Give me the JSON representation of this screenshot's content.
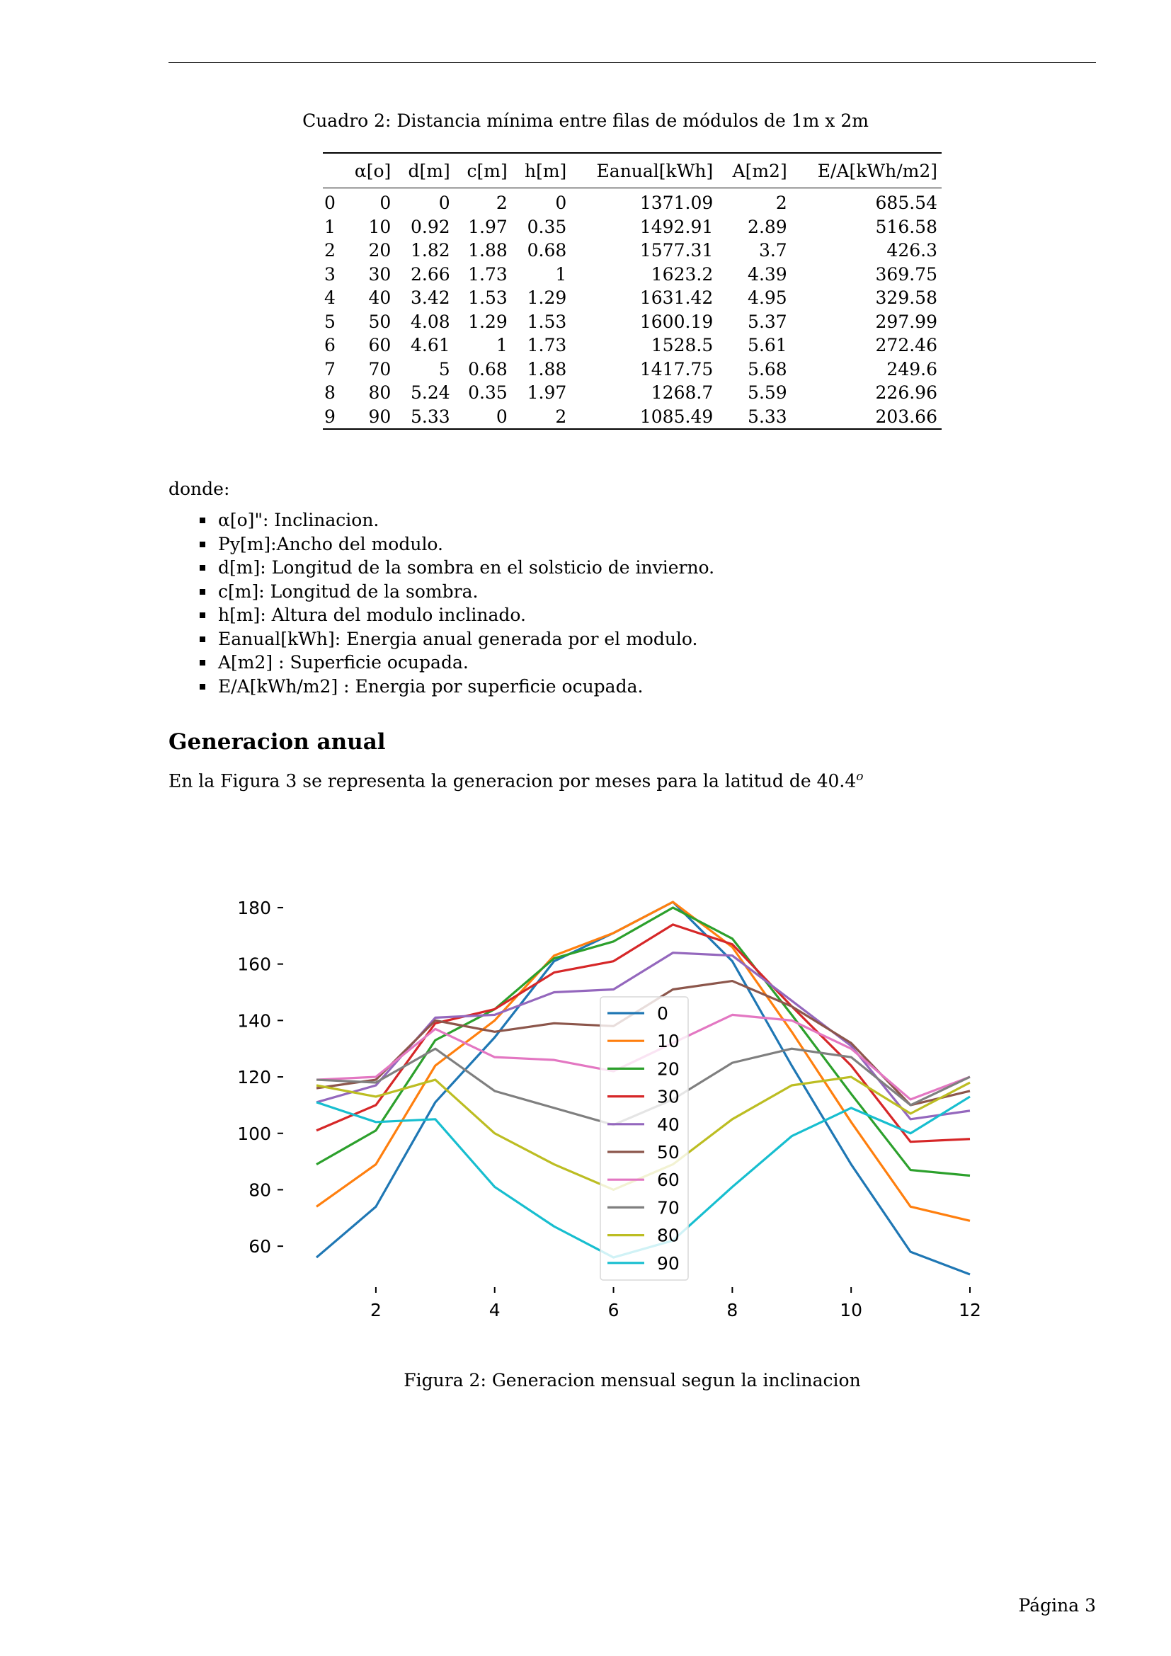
{
  "table": {
    "caption": "Cuadro 2: Distancia mínima entre filas de módulos de 1m x 2m",
    "headers": [
      "",
      "α[o]",
      "d[m]",
      "c[m]",
      "h[m]",
      "Eanual[kWh]",
      "A[m2]",
      "E/A[kWh/m2]"
    ],
    "rows": [
      [
        "0",
        "0",
        "0",
        "2",
        "0",
        "1371.09",
        "2",
        "685.54"
      ],
      [
        "1",
        "10",
        "0.92",
        "1.97",
        "0.35",
        "1492.91",
        "2.89",
        "516.58"
      ],
      [
        "2",
        "20",
        "1.82",
        "1.88",
        "0.68",
        "1577.31",
        "3.7",
        "426.3"
      ],
      [
        "3",
        "30",
        "2.66",
        "1.73",
        "1",
        "1623.2",
        "4.39",
        "369.75"
      ],
      [
        "4",
        "40",
        "3.42",
        "1.53",
        "1.29",
        "1631.42",
        "4.95",
        "329.58"
      ],
      [
        "5",
        "50",
        "4.08",
        "1.29",
        "1.53",
        "1600.19",
        "5.37",
        "297.99"
      ],
      [
        "6",
        "60",
        "4.61",
        "1",
        "1.73",
        "1528.5",
        "5.61",
        "272.46"
      ],
      [
        "7",
        "70",
        "5",
        "0.68",
        "1.88",
        "1417.75",
        "5.68",
        "249.6"
      ],
      [
        "8",
        "80",
        "5.24",
        "0.35",
        "1.97",
        "1268.7",
        "5.59",
        "226.96"
      ],
      [
        "9",
        "90",
        "5.33",
        "0",
        "2",
        "1085.49",
        "5.33",
        "203.66"
      ]
    ]
  },
  "donde": "donde:",
  "definitions": [
    "α[o]\": Inclinacion.",
    "Py[m]:Ancho del modulo.",
    "d[m]: Longitud de la sombra en el solsticio de invierno.",
    "c[m]: Longitud de la sombra.",
    "h[m]: Altura del modulo inclinado.",
    "Eanual[kWh]: Energia anual generada por el modulo.",
    "A[m2] : Superficie ocupada.",
    "E/A[kWh/m2] : Energia por superficie ocupada."
  ],
  "section": {
    "heading": "Generacion anual",
    "text": "En la Figura 3 se representa la generacion por meses para la latitud de 40.4",
    "text_sup": "o"
  },
  "figure_caption": "Figura 2: Generacion mensual segun la inclinacion",
  "page_number": "Página 3",
  "colors": {
    "0": "#1f77b4",
    "10": "#ff7f0e",
    "20": "#2ca02c",
    "30": "#d62728",
    "40": "#9467bd",
    "50": "#8c564b",
    "60": "#e377c2",
    "70": "#7f7f7f",
    "80": "#bcbd22",
    "90": "#17becf"
  },
  "chart_data": {
    "type": "line",
    "title": "",
    "xlabel": "",
    "ylabel": "",
    "x": [
      1,
      2,
      3,
      4,
      5,
      6,
      7,
      8,
      9,
      10,
      11,
      12
    ],
    "xlim": [
      1,
      12
    ],
    "ylim": [
      50,
      183
    ],
    "xticks": [
      2,
      4,
      6,
      8,
      10,
      12
    ],
    "yticks": [
      60,
      80,
      100,
      120,
      140,
      160,
      180
    ],
    "grid": false,
    "legend_position": "center",
    "series": [
      {
        "name": "0",
        "color": "#1f77b4",
        "values": [
          56,
          74,
          111,
          134,
          161,
          171,
          182,
          161,
          124,
          89,
          58,
          50
        ]
      },
      {
        "name": "10",
        "color": "#ff7f0e",
        "values": [
          74,
          89,
          124,
          140,
          163,
          171,
          182,
          166,
          136,
          104,
          74,
          69
        ]
      },
      {
        "name": "20",
        "color": "#2ca02c",
        "values": [
          89,
          101,
          133,
          144,
          162,
          168,
          180,
          169,
          142,
          114,
          87,
          85
        ]
      },
      {
        "name": "30",
        "color": "#d62728",
        "values": [
          101,
          110,
          139,
          144,
          157,
          161,
          174,
          167,
          145,
          124,
          97,
          98
        ]
      },
      {
        "name": "40",
        "color": "#9467bd",
        "values": [
          111,
          117,
          141,
          142,
          150,
          151,
          164,
          163,
          147,
          131,
          105,
          108
        ]
      },
      {
        "name": "50",
        "color": "#8c564b",
        "values": [
          116,
          119,
          140,
          136,
          139,
          138,
          151,
          154,
          145,
          132,
          110,
          115
        ]
      },
      {
        "name": "60",
        "color": "#e377c2",
        "values": [
          119,
          120,
          137,
          127,
          126,
          122,
          132,
          142,
          140,
          130,
          112,
          120
        ]
      },
      {
        "name": "70",
        "color": "#7f7f7f",
        "values": [
          119,
          118,
          130,
          115,
          109,
          103,
          112,
          125,
          130,
          127,
          110,
          120
        ]
      },
      {
        "name": "80",
        "color": "#bcbd22",
        "values": [
          117,
          113,
          119,
          100,
          89,
          80,
          89,
          105,
          117,
          120,
          107,
          118
        ]
      },
      {
        "name": "90",
        "color": "#17becf",
        "values": [
          111,
          104,
          105,
          81,
          67,
          56,
          62,
          81,
          99,
          109,
          100,
          113
        ]
      }
    ]
  }
}
